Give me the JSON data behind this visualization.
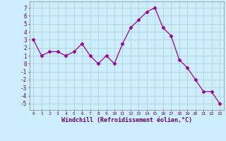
{
  "x": [
    0,
    1,
    2,
    3,
    4,
    5,
    6,
    7,
    8,
    9,
    10,
    11,
    12,
    13,
    14,
    15,
    16,
    17,
    18,
    19,
    20,
    21,
    22,
    23
  ],
  "y": [
    3,
    1,
    1.5,
    1.5,
    1,
    1.5,
    2.5,
    1,
    0,
    1,
    0,
    2.5,
    4.5,
    5.5,
    6.5,
    7,
    4.5,
    3.5,
    0.5,
    -0.5,
    -2,
    -3.5,
    -3.5,
    -5
  ],
  "line_color": "#990099",
  "marker": "D",
  "marker_size": 2.5,
  "bg_color": "#cceeff",
  "grid_color": "#aacccc",
  "ylabel_ticks": [
    7,
    6,
    5,
    4,
    3,
    2,
    1,
    0,
    -1,
    -2,
    -3,
    -4,
    -5
  ],
  "ylim": [
    -5.8,
    7.8
  ],
  "xlim": [
    -0.5,
    23.5
  ],
  "xlabel": "Windchill (Refroidissement éolien,°C)",
  "xtick_labels": [
    "0",
    "1",
    "2",
    "3",
    "4",
    "5",
    "6",
    "7",
    "8",
    "9",
    "10",
    "11",
    "12",
    "13",
    "14",
    "15",
    "16",
    "17",
    "18",
    "19",
    "20",
    "21",
    "22",
    "23"
  ]
}
